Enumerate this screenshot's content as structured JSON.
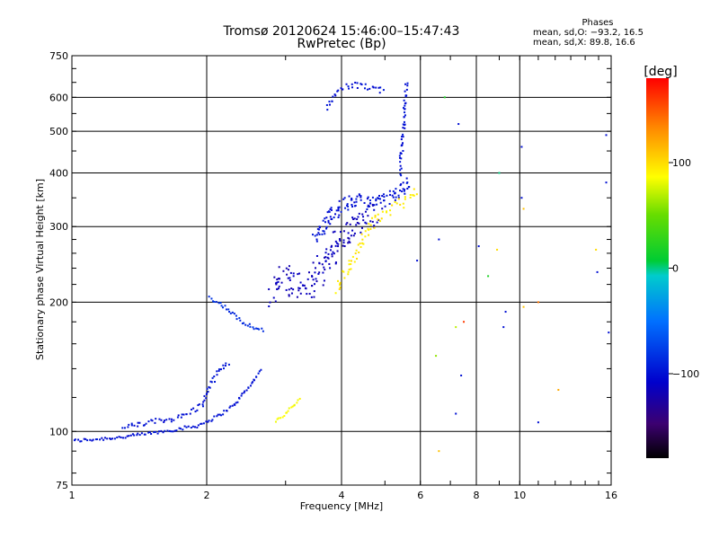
{
  "chart_data": {
    "type": "scatter",
    "title": "Tromsø 20120624 15:46:00–15:47:43",
    "subtitle": "RwPretec (Bp)",
    "xlabel": "Frequency [MHz]",
    "ylabel": "Stationary phase Virtual Height [km]",
    "x_scale": "log",
    "y_scale": "log",
    "xlim": [
      1,
      16
    ],
    "ylim": [
      75,
      750
    ],
    "x_ticks": [
      1,
      2,
      4,
      6,
      8,
      10,
      16
    ],
    "x_tick_labels": [
      "1",
      "2",
      "4",
      "6",
      "8",
      "10",
      "16"
    ],
    "y_ticks": [
      75,
      100,
      200,
      300,
      400,
      500,
      600,
      750
    ],
    "y_tick_labels": [
      "75",
      "100",
      "200",
      "300",
      "400",
      "500",
      "600",
      "750"
    ],
    "grid": true,
    "phases_header": "Phases",
    "stats": [
      "mean, sd,O: −93.2, 16.5",
      "mean, sd,X:  89.8, 16.6"
    ],
    "colorbar": {
      "label": "[deg]",
      "range": [
        -180,
        180
      ],
      "tick_values": [
        100,
        0,
        -100
      ],
      "tick_labels": [
        "100",
        "0",
        "−100"
      ]
    },
    "series": [
      {
        "name": "low-frequency E/F trace",
        "phase_deg": -100,
        "spread": 0.006,
        "segments": [
          [
            [
              1.0,
              95
            ],
            [
              1.3,
              97
            ],
            [
              1.6,
              100
            ],
            [
              1.9,
              103
            ],
            [
              2.1,
              108
            ],
            [
              2.3,
              115
            ],
            [
              2.5,
              128
            ],
            [
              2.65,
              140
            ]
          ]
        ]
      },
      {
        "name": "upper cusp trace",
        "phase_deg": -85,
        "spread": 0.006,
        "segments": [
          [
            [
              2.03,
              205
            ],
            [
              2.2,
              195
            ],
            [
              2.4,
              180
            ],
            [
              2.6,
              173
            ],
            [
              2.7,
              172
            ]
          ]
        ]
      },
      {
        "name": "scattered low points",
        "phase_deg": -100,
        "spread": 0.01,
        "segments": [
          [
            [
              1.3,
              102
            ],
            [
              1.5,
              105
            ],
            [
              1.75,
              108
            ],
            [
              1.95,
              115
            ],
            [
              2.05,
              130
            ],
            [
              2.15,
              140
            ],
            [
              2.25,
              145
            ]
          ]
        ]
      },
      {
        "name": "X-mode low trace",
        "phase_deg": 85,
        "spread": 0.005,
        "segments": [
          [
            [
              2.85,
              106
            ],
            [
              3.0,
              110
            ],
            [
              3.15,
              116
            ],
            [
              3.25,
              120
            ]
          ]
        ]
      },
      {
        "name": "F-layer spread cloud",
        "phase_deg": -115,
        "spread": 0.05,
        "segments": [
          [
            [
              2.8,
              210
            ],
            [
              3.0,
              230
            ],
            [
              3.2,
              220
            ],
            [
              3.4,
              215
            ],
            [
              3.6,
              240
            ],
            [
              3.8,
              260
            ],
            [
              4.0,
              280
            ],
            [
              4.3,
              300
            ],
            [
              4.6,
              315
            ],
            [
              4.9,
              320
            ]
          ]
        ]
      },
      {
        "name": "F-layer upper edge",
        "phase_deg": -100,
        "spread": 0.025,
        "segments": [
          [
            [
              3.5,
              285
            ],
            [
              3.8,
              320
            ],
            [
              4.0,
              335
            ],
            [
              4.3,
              345
            ],
            [
              4.7,
              340
            ],
            [
              5.0,
              345
            ],
            [
              5.4,
              360
            ],
            [
              5.7,
              385
            ]
          ]
        ]
      },
      {
        "name": "X-mode F trace",
        "phase_deg": 95,
        "spread": 0.02,
        "segments": [
          [
            [
              3.9,
              215
            ],
            [
              4.1,
              235
            ],
            [
              4.3,
              260
            ],
            [
              4.5,
              285
            ],
            [
              4.7,
              305
            ],
            [
              5.0,
              325
            ],
            [
              5.3,
              335
            ],
            [
              5.6,
              345
            ],
            [
              5.9,
              370
            ]
          ]
        ]
      },
      {
        "name": "cusp rise",
        "phase_deg": -100,
        "spread": 0.012,
        "segments": [
          [
            [
              5.4,
              400
            ],
            [
              5.5,
              500
            ],
            [
              5.55,
              600
            ],
            [
              5.6,
              650
            ]
          ]
        ]
      },
      {
        "name": "top trace",
        "phase_deg": -100,
        "spread": 0.012,
        "segments": [
          [
            [
              3.7,
              570
            ],
            [
              3.9,
              620
            ],
            [
              4.2,
              640
            ],
            [
              4.6,
              635
            ],
            [
              5.0,
              620
            ]
          ]
        ]
      },
      {
        "name": "isolated echoes",
        "phase_deg": 0,
        "spread": 0.0,
        "points": [
          [
            6.6,
            90,
            110
          ],
          [
            6.5,
            150,
            60
          ],
          [
            7.2,
            110,
            -100
          ],
          [
            7.4,
            135,
            -100
          ],
          [
            7.5,
            180,
            160
          ],
          [
            7.2,
            175,
            70
          ],
          [
            8.1,
            270,
            -100
          ],
          [
            8.9,
            265,
            100
          ],
          [
            9.2,
            175,
            -100
          ],
          [
            9.3,
            190,
            -100
          ],
          [
            8.5,
            230,
            20
          ],
          [
            10.2,
            195,
            110
          ],
          [
            11.0,
            200,
            140
          ],
          [
            11.0,
            105,
            -100
          ],
          [
            12.2,
            125,
            120
          ],
          [
            14.8,
            265,
            100
          ],
          [
            14.9,
            235,
            -100
          ],
          [
            15.6,
            490,
            -100
          ],
          [
            15.6,
            380,
            -100
          ],
          [
            15.8,
            170,
            -100
          ],
          [
            10.1,
            350,
            -100
          ],
          [
            10.1,
            460,
            -100
          ],
          [
            10.2,
            330,
            110
          ],
          [
            9.0,
            400,
            0
          ],
          [
            6.8,
            600,
            20
          ],
          [
            6.6,
            280,
            -100
          ],
          [
            5.9,
            250,
            -100
          ],
          [
            7.3,
            520,
            -100
          ]
        ]
      }
    ]
  }
}
